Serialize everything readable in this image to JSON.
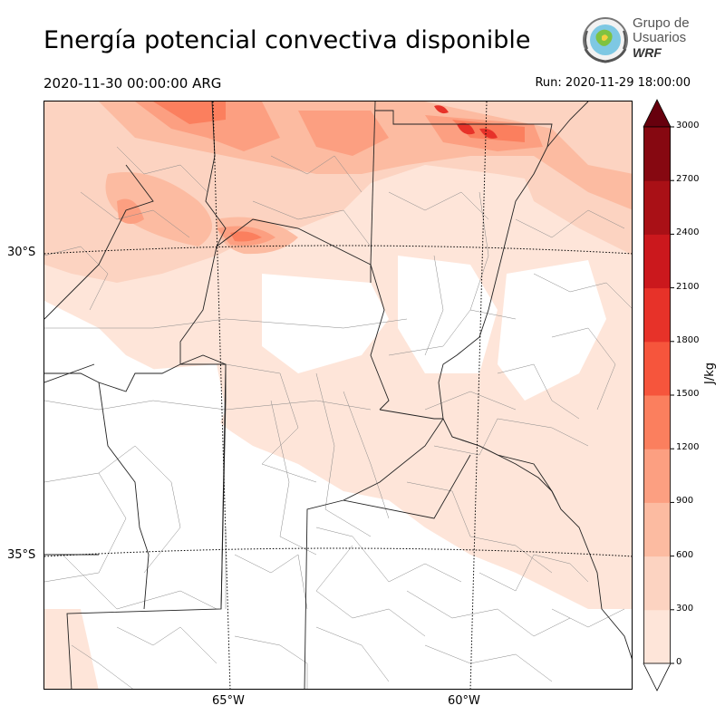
{
  "header": {
    "title": "Energía potencial convectiva disponible",
    "valid_time": "2020-11-30 00:00:00 ARG",
    "run_time": "Run: 2020-11-29 18:00:00"
  },
  "logo": {
    "line1": "Grupo de",
    "line2": "Usuarios",
    "line3": "WRF"
  },
  "map": {
    "lat_labels": [
      "30°S",
      "35°S"
    ],
    "lon_labels": [
      "65°W",
      "60°W"
    ]
  },
  "colorbar": {
    "unit": "J/kg",
    "ticks": [
      "0",
      "300",
      "600",
      "900",
      "1200",
      "1500",
      "1800",
      "2100",
      "2400",
      "2700",
      "3000"
    ],
    "colors": [
      "#fee5d9",
      "#fcd3c1",
      "#fcbba1",
      "#fc9f81",
      "#fb7f5e",
      "#f6553c",
      "#e73229",
      "#cb181d",
      "#a91016",
      "#860811"
    ],
    "extend_color": "#67000d"
  }
}
